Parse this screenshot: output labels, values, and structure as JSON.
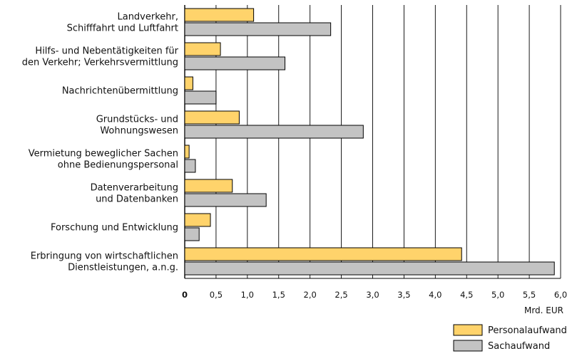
{
  "chart_data": {
    "type": "bar",
    "orientation": "horizontal",
    "categories": [
      [
        "Landverkehr,",
        "Schifffahrt und Luftfahrt"
      ],
      [
        "Hilfs- und Nebentätigkeiten für",
        "den Verkehr; Verkehrsvermittlung"
      ],
      [
        "Nachrichtenübermittlung"
      ],
      [
        "Grundstücks- und",
        "Wohnungswesen"
      ],
      [
        "Vermietung beweglicher Sachen",
        "ohne Bedienungspersonal"
      ],
      [
        "Datenverarbeitung",
        "und Datenbanken"
      ],
      [
        "Forschung und Entwicklung"
      ],
      [
        "Erbringung von wirtschaftlichen",
        "Dienstleistungen, a.n.g."
      ]
    ],
    "series": [
      {
        "name": "Personalaufwand",
        "color": "#ffd36b",
        "values": [
          1.1,
          0.57,
          0.13,
          0.87,
          0.07,
          0.76,
          0.41,
          4.42
        ]
      },
      {
        "name": "Sachaufwand",
        "color": "#c3c3c3",
        "values": [
          2.33,
          1.6,
          0.5,
          2.85,
          0.17,
          1.3,
          0.23,
          5.9
        ]
      }
    ],
    "xlim": [
      0,
      6
    ],
    "xticks": [
      "0",
      "0,5",
      "1,0",
      "1,5",
      "2,0",
      "2,5",
      "3,0",
      "3,5",
      "4,0",
      "4,5",
      "5,0",
      "5,5",
      "6,0"
    ],
    "xunit": "Mrd. EUR",
    "grid": true,
    "legend_position": "bottom-right"
  }
}
